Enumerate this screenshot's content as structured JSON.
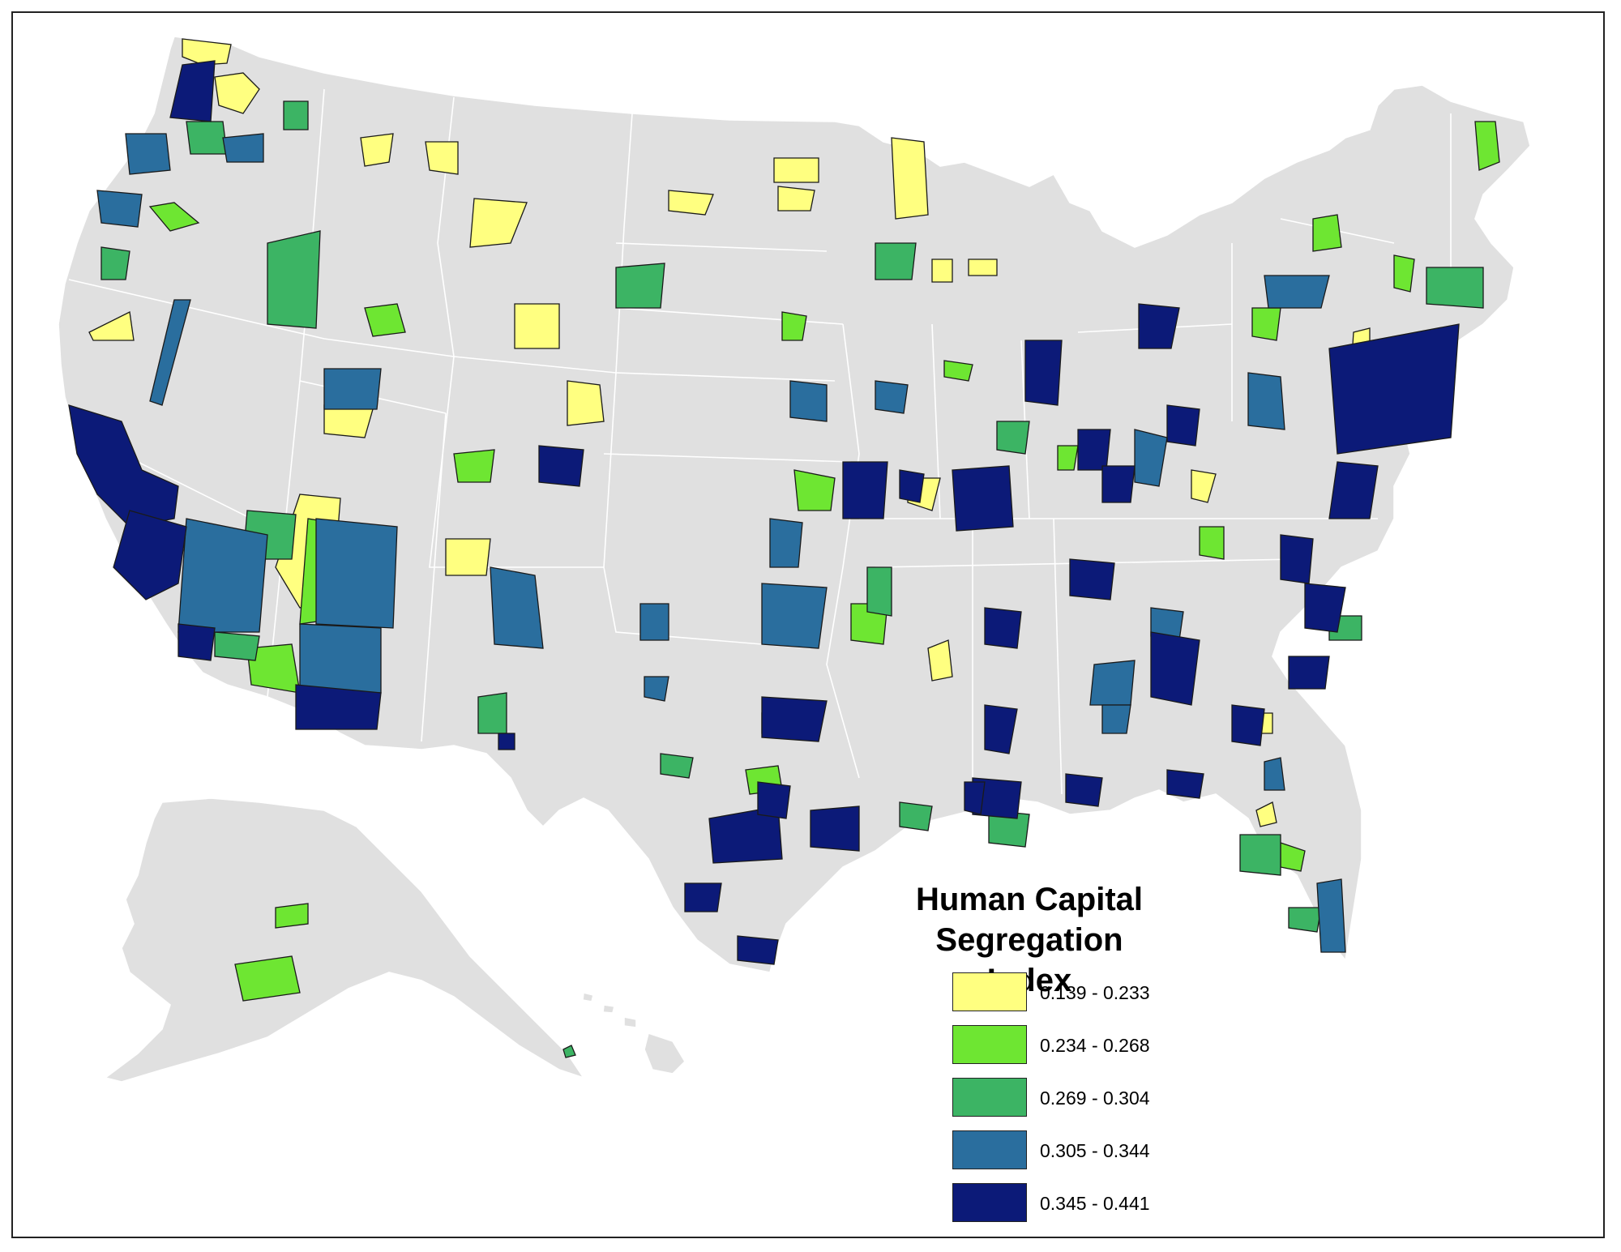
{
  "legend": {
    "title_line1": "Human Capital",
    "title_line2": "Segregation Index",
    "classes": [
      {
        "label": "0.139 - 0.233",
        "color": "#ffff80"
      },
      {
        "label": "0.234 - 0.268",
        "color": "#6ee632"
      },
      {
        "label": "0.269 - 0.304",
        "color": "#3cb464"
      },
      {
        "label": "0.305 - 0.344",
        "color": "#2a6e9e"
      },
      {
        "label": "0.345 - 0.441",
        "color": "#0c1a78"
      }
    ]
  },
  "map": {
    "background_land_color": "#e0e0e0",
    "border_color": "#ffffff"
  }
}
